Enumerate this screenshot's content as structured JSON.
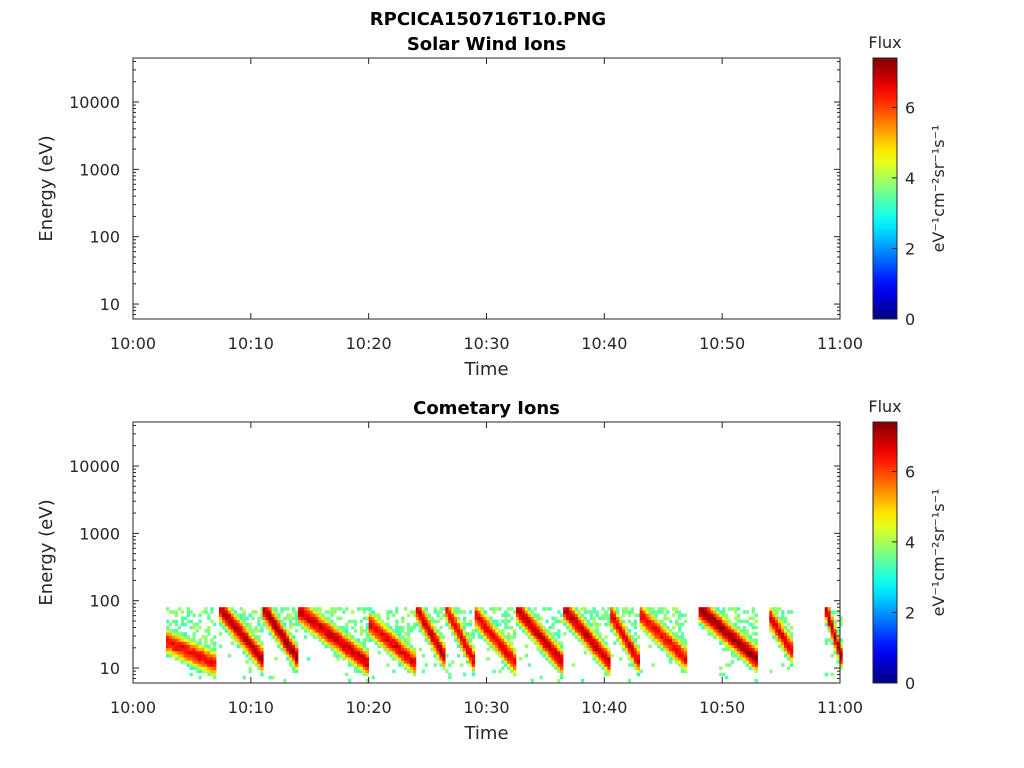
{
  "figure_title": "RPCICA150716T10.PNG",
  "chart_data": [
    {
      "type": "heatmap",
      "title": "Solar Wind Ions",
      "xlabel": "Time",
      "ylabel": "Energy (eV)",
      "x_tick_labels": [
        "10:00",
        "10:10",
        "10:20",
        "10:30",
        "10:40",
        "10:50",
        "11:00"
      ],
      "x_range_minutes": [
        0,
        60
      ],
      "y_scale": "log",
      "y_tick_labels": [
        "10",
        "100",
        "1000",
        "10000"
      ],
      "y_range": [
        6,
        45000
      ],
      "colorbar": {
        "title": "Flux",
        "label": "eV⁻¹cm⁻²sr⁻¹s⁻¹",
        "ticks": [
          "0",
          "2",
          "4",
          "6"
        ],
        "range": [
          0,
          7.4
        ],
        "colormap": "jet"
      },
      "events": []
    },
    {
      "type": "heatmap",
      "title": "Cometary Ions",
      "xlabel": "Time",
      "ylabel": "Energy (eV)",
      "x_tick_labels": [
        "10:00",
        "10:10",
        "10:20",
        "10:30",
        "10:40",
        "10:50",
        "11:00"
      ],
      "x_range_minutes": [
        0,
        60
      ],
      "y_scale": "log",
      "y_tick_labels": [
        "10",
        "100",
        "1000",
        "10000"
      ],
      "y_range": [
        6,
        45000
      ],
      "colorbar": {
        "title": "Flux",
        "label": "eV⁻¹cm⁻²sr⁻¹s⁻¹",
        "ticks": [
          "0",
          "2",
          "4",
          "6"
        ],
        "range": [
          0,
          7.4
        ],
        "colormap": "jet"
      },
      "events": [
        {
          "t0": 2.8,
          "t1": 7.0,
          "emax": 25,
          "emin": 7,
          "peak": 6.5
        },
        {
          "t0": 7.3,
          "t1": 11.0,
          "emax": 75,
          "emin": 8,
          "peak": 7.0
        },
        {
          "t0": 11.0,
          "t1": 14.0,
          "emax": 75,
          "emin": 8,
          "peak": 7.1
        },
        {
          "t0": 14.0,
          "t1": 20.0,
          "emax": 70,
          "emin": 7,
          "peak": 6.8
        },
        {
          "t0": 20.0,
          "t1": 24.0,
          "emax": 45,
          "emin": 7,
          "peak": 6.6
        },
        {
          "t0": 24.0,
          "t1": 26.5,
          "emax": 75,
          "emin": 8,
          "peak": 6.9
        },
        {
          "t0": 26.5,
          "t1": 29.0,
          "emax": 75,
          "emin": 7,
          "peak": 6.6
        },
        {
          "t0": 29.0,
          "t1": 32.5,
          "emax": 60,
          "emin": 7,
          "peak": 6.6
        },
        {
          "t0": 32.5,
          "t1": 36.5,
          "emax": 75,
          "emin": 7,
          "peak": 6.9
        },
        {
          "t0": 36.5,
          "t1": 40.5,
          "emax": 75,
          "emin": 7,
          "peak": 6.9
        },
        {
          "t0": 40.5,
          "t1": 43.0,
          "emax": 60,
          "emin": 7,
          "peak": 6.7
        },
        {
          "t0": 43.0,
          "t1": 47.0,
          "emax": 60,
          "emin": 8,
          "peak": 6.5
        },
        {
          "t0": 48.0,
          "t1": 53.0,
          "emax": 75,
          "emin": 8,
          "peak": 7.2
        },
        {
          "t0": 54.0,
          "t1": 56.0,
          "emax": 55,
          "emin": 10,
          "peak": 6.7
        },
        {
          "t0": 58.7,
          "t1": 60.0,
          "emax": 75,
          "emin": 9,
          "peak": 7.0
        }
      ]
    }
  ]
}
